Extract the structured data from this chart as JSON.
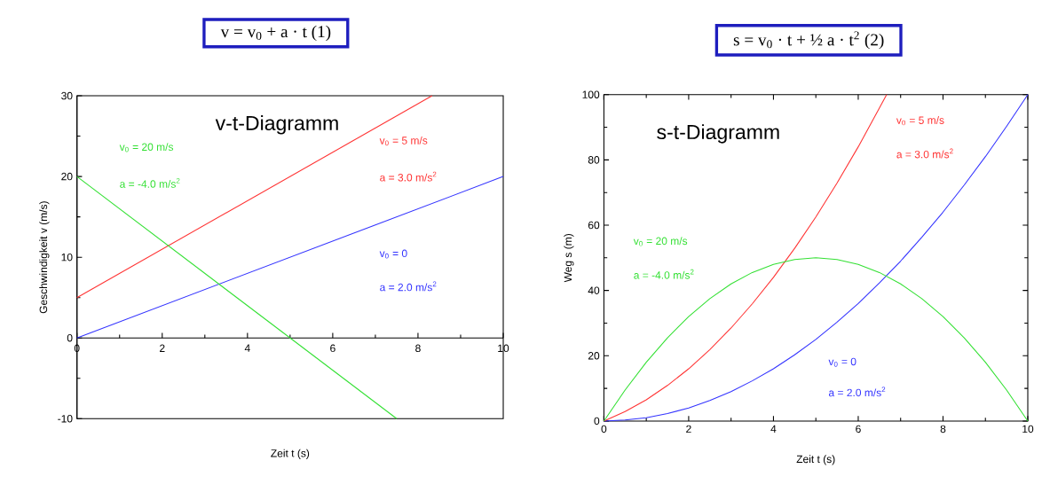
{
  "chart_data": [
    {
      "type": "line",
      "title": "v = v$_{0}$ + a · t   (1)",
      "subtitle": "v-t-Diagramm",
      "xlabel": "Zeit t (s)",
      "ylabel": "Geschwindigkeit v (m/s)",
      "xlim": [
        0,
        10
      ],
      "ylim": [
        -10,
        30
      ],
      "xticks": [
        0,
        2,
        4,
        6,
        8,
        10
      ],
      "yticks": [
        -10,
        0,
        10,
        20,
        30
      ],
      "series": [
        {
          "color": "#3333ff",
          "x": [
            0,
            10
          ],
          "values": [
            0,
            20
          ]
        },
        {
          "color": "#ff3333",
          "x": [
            0,
            8.33
          ],
          "values": [
            5,
            30
          ]
        },
        {
          "color": "#33e033",
          "x": [
            0,
            7.5
          ],
          "values": [
            20,
            -10
          ]
        }
      ],
      "annotations": [
        "v$_{0}$ = 0",
        "a = 2.0 m/s$^{2}$",
        "v$_{0}$ = 5 m/s",
        "a = 3.0 m/s$^{2}$",
        "v$_{0}$ = 20 m/s",
        "a = -4.0 m/s$^{2}$"
      ]
    },
    {
      "type": "line",
      "title": "s = v$_{0}$ · t + ½ a · t$^{2}$   (2)",
      "subtitle": "s-t-Diagramm",
      "xlabel": "Zeit t (s)",
      "ylabel": "Weg s (m)",
      "xlim": [
        0,
        10
      ],
      "ylim": [
        0,
        100
      ],
      "xticks": [
        0,
        2,
        4,
        6,
        8,
        10
      ],
      "yticks": [
        0,
        20,
        40,
        60,
        80,
        100
      ],
      "series": [
        {
          "color": "#3333ff",
          "x": [
            0,
            0.5,
            1,
            1.5,
            2,
            2.5,
            3,
            3.5,
            4,
            4.5,
            5,
            5.5,
            6,
            6.5,
            7,
            7.5,
            8,
            8.5,
            9,
            9.5,
            10
          ],
          "values": [
            0,
            0.3,
            1,
            2.3,
            4,
            6.3,
            9,
            12.3,
            16,
            20.3,
            25,
            30.3,
            36,
            42.3,
            49,
            56.3,
            64,
            72.3,
            81,
            90.3,
            100
          ]
        },
        {
          "color": "#ff3333",
          "x": [
            0,
            0.5,
            1,
            1.5,
            2,
            2.5,
            3,
            3.5,
            4,
            4.5,
            5,
            5.5,
            6,
            6.5,
            6.67
          ],
          "values": [
            0,
            2.9,
            6.5,
            10.9,
            16,
            21.9,
            28.5,
            35.9,
            44,
            52.9,
            62.5,
            72.9,
            84,
            95.9,
            100
          ]
        },
        {
          "color": "#33e033",
          "x": [
            0,
            0.5,
            1,
            1.5,
            2,
            2.5,
            3,
            3.5,
            4,
            4.5,
            5,
            5.5,
            6,
            6.5,
            7,
            7.5,
            8,
            8.5,
            9,
            9.5,
            10
          ],
          "values": [
            0,
            9.5,
            18,
            25.5,
            32,
            37.5,
            42,
            45.5,
            48,
            49.5,
            50,
            49.5,
            48,
            45.5,
            42,
            37.5,
            32,
            25.5,
            18,
            9.5,
            0
          ]
        }
      ],
      "annotations": [
        "v$_{0}$ = 0",
        "a = 2.0 m/s$^{2}$",
        "v$_{0}$ = 5 m/s",
        "a = 3.0 m/s$^{2}$",
        "v$_{0}$ = 20 m/s",
        "a = -4.0 m/s$^{2}$"
      ]
    }
  ]
}
